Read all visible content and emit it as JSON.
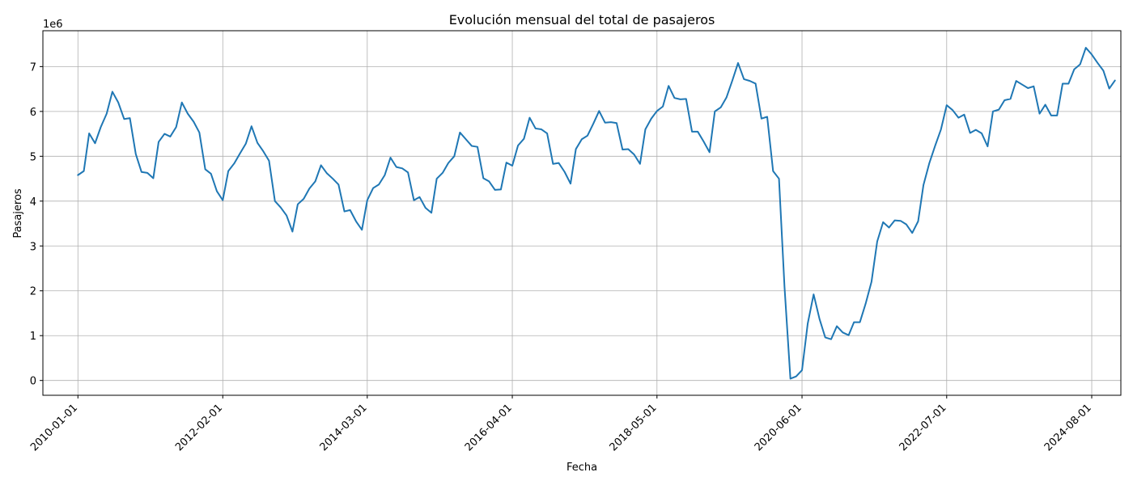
{
  "chart_data": {
    "type": "line",
    "title": "Evolución mensual del total de pasajeros",
    "xlabel": "Fecha",
    "ylabel": "Pasajeros",
    "y_offset_label": "1e6",
    "x_ticks": [
      "2010-01-01",
      "2012-02-01",
      "2014-03-01",
      "2016-04-01",
      "2018-05-01",
      "2020-06-01",
      "2022-07-01",
      "2024-08-01"
    ],
    "y_ticks": [
      0,
      1,
      2,
      3,
      4,
      5,
      6,
      7
    ],
    "grid": true,
    "color": "#1f77b4",
    "x_range": [
      "2009-07-01",
      "2025-01-01"
    ],
    "y_range": [
      -0.33,
      7.8
    ],
    "series": [
      {
        "dates": [
          "2010-01-01",
          "2010-02-01",
          "2010-03-01",
          "2010-04-01",
          "2010-05-01",
          "2010-06-01",
          "2010-07-01",
          "2010-08-01",
          "2010-09-01",
          "2010-10-01",
          "2010-11-01",
          "2010-12-01",
          "2011-01-01",
          "2011-02-01",
          "2011-03-01",
          "2011-04-01",
          "2011-05-01",
          "2011-06-01",
          "2011-07-01",
          "2011-08-01",
          "2011-09-01",
          "2011-10-01",
          "2011-11-01",
          "2011-12-01",
          "2012-01-01",
          "2012-02-01",
          "2012-03-01",
          "2012-04-01",
          "2012-05-01",
          "2012-06-01",
          "2012-07-01",
          "2012-08-01",
          "2012-09-01",
          "2012-10-01",
          "2012-11-01",
          "2012-12-01",
          "2013-01-01",
          "2013-02-01",
          "2013-03-01",
          "2013-04-01",
          "2013-05-01",
          "2013-06-01",
          "2013-07-01",
          "2013-08-01",
          "2013-09-01",
          "2013-10-01",
          "2013-11-01",
          "2013-12-01",
          "2014-01-01",
          "2014-02-01",
          "2014-03-01",
          "2014-04-01",
          "2014-05-01",
          "2014-06-01",
          "2014-07-01",
          "2014-08-01",
          "2014-09-01",
          "2014-10-01",
          "2014-11-01",
          "2014-12-01",
          "2015-01-01",
          "2015-02-01",
          "2015-03-01",
          "2015-04-01",
          "2015-05-01",
          "2015-06-01",
          "2015-07-01",
          "2015-08-01",
          "2015-09-01",
          "2015-10-01",
          "2015-11-01",
          "2015-12-01",
          "2016-01-01",
          "2016-02-01",
          "2016-03-01",
          "2016-04-01",
          "2016-05-01",
          "2016-06-01",
          "2016-07-01",
          "2016-08-01",
          "2016-09-01",
          "2016-10-01",
          "2016-11-01",
          "2016-12-01",
          "2017-01-01",
          "2017-02-01",
          "2017-03-01",
          "2017-04-01",
          "2017-05-01",
          "2017-06-01",
          "2017-07-01",
          "2017-08-01",
          "2017-09-01",
          "2017-10-01",
          "2017-11-01",
          "2017-12-01",
          "2018-01-01",
          "2018-02-01",
          "2018-03-01",
          "2018-04-01",
          "2018-05-01",
          "2018-06-01",
          "2018-07-01",
          "2018-08-01",
          "2018-09-01",
          "2018-10-01",
          "2018-11-01",
          "2018-12-01",
          "2019-01-01",
          "2019-02-01",
          "2019-03-01",
          "2019-04-01",
          "2019-05-01",
          "2019-06-01",
          "2019-07-01",
          "2019-08-01",
          "2019-09-01",
          "2019-10-01",
          "2019-11-01",
          "2019-12-01",
          "2020-01-01",
          "2020-02-01",
          "2020-03-01",
          "2020-04-01",
          "2020-05-01",
          "2020-06-01",
          "2020-07-01",
          "2020-08-01",
          "2020-09-01",
          "2020-10-01",
          "2020-11-01",
          "2020-12-01",
          "2021-01-01",
          "2021-02-01",
          "2021-03-01",
          "2021-04-01",
          "2021-05-01",
          "2021-06-01",
          "2021-07-01",
          "2021-08-01",
          "2021-09-01",
          "2021-10-01",
          "2021-11-01",
          "2021-12-01",
          "2022-01-01",
          "2022-02-01",
          "2022-03-01",
          "2022-04-01",
          "2022-05-01",
          "2022-06-01",
          "2022-07-01",
          "2022-08-01",
          "2022-09-01",
          "2022-10-01",
          "2022-11-01",
          "2022-12-01",
          "2023-01-01",
          "2023-02-01",
          "2023-03-01",
          "2023-04-01",
          "2023-05-01",
          "2023-06-01",
          "2023-07-01",
          "2023-08-01",
          "2023-09-01",
          "2023-10-01",
          "2023-11-01",
          "2023-12-01",
          "2024-01-01",
          "2024-02-01",
          "2024-03-01",
          "2024-04-01",
          "2024-05-01",
          "2024-06-01",
          "2024-07-01",
          "2024-08-01",
          "2024-09-01",
          "2024-10-01",
          "2024-11-01",
          "2024-12-01"
        ],
        "values": [
          4.58,
          4.67,
          5.51,
          5.29,
          5.65,
          5.95,
          6.44,
          6.2,
          5.83,
          5.85,
          5.05,
          4.65,
          4.63,
          4.51,
          5.32,
          5.5,
          5.44,
          5.65,
          6.2,
          5.95,
          5.77,
          5.53,
          4.71,
          4.61,
          4.22,
          4.02,
          4.67,
          4.84,
          5.06,
          5.28,
          5.67,
          5.3,
          5.11,
          4.9,
          4.0,
          3.86,
          3.68,
          3.32,
          3.93,
          4.05,
          4.28,
          4.44,
          4.8,
          4.62,
          4.5,
          4.37,
          3.77,
          3.8,
          3.55,
          3.36,
          4.02,
          4.29,
          4.37,
          4.58,
          4.97,
          4.76,
          4.73,
          4.64,
          4.02,
          4.09,
          3.85,
          3.74,
          4.5,
          4.63,
          4.85,
          5.0,
          5.53,
          5.38,
          5.23,
          5.21,
          4.51,
          4.44,
          4.25,
          4.26,
          4.86,
          4.79,
          5.24,
          5.39,
          5.86,
          5.62,
          5.6,
          5.51,
          4.83,
          4.85,
          4.65,
          4.39,
          5.16,
          5.38,
          5.46,
          5.73,
          6.01,
          5.75,
          5.76,
          5.74,
          5.15,
          5.16,
          5.04,
          4.83,
          5.6,
          5.84,
          6.01,
          6.11,
          6.57,
          6.3,
          6.27,
          6.28,
          5.55,
          5.55,
          5.33,
          5.09,
          6.0,
          6.09,
          6.31,
          6.69,
          7.08,
          6.72,
          6.68,
          6.62,
          5.84,
          5.88,
          4.67,
          4.5,
          2.09,
          0.04,
          0.09,
          0.23,
          1.27,
          1.92,
          1.37,
          0.96,
          0.92,
          1.21,
          1.07,
          1.01,
          1.3,
          1.3,
          1.71,
          2.2,
          3.1,
          3.53,
          3.41,
          3.57,
          3.56,
          3.48,
          3.29,
          3.55,
          4.36,
          4.85,
          5.23,
          5.6,
          6.14,
          6.03,
          5.86,
          5.93,
          5.52,
          5.59,
          5.51,
          5.22,
          6.0,
          6.04,
          6.25,
          6.28,
          6.68,
          6.6,
          6.52,
          6.56,
          5.95,
          6.15,
          5.91,
          5.91,
          6.62,
          6.62,
          6.94,
          7.05,
          7.42,
          7.27,
          7.08,
          6.91,
          6.51,
          6.69
        ]
      }
    ]
  }
}
